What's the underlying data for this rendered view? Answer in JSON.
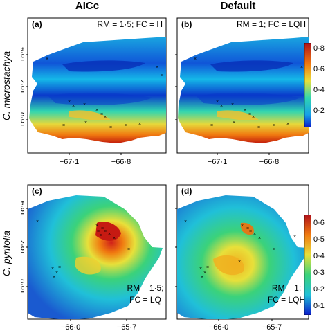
{
  "columns": [
    "AICc",
    "Default"
  ],
  "rows": [
    "C. microstachya",
    "C. pyrifolia"
  ],
  "panels": [
    {
      "tag": "(a)",
      "label": "RM = 1·5; FC = H",
      "x_ticks": [
        "−67·1",
        "−66·8"
      ],
      "y_ticks": [
        "18·4",
        "18·2",
        "18·0"
      ]
    },
    {
      "tag": "(b)",
      "label": "RM = 1; FC = LQH",
      "x_ticks": [
        "−67·1",
        "−66·8"
      ],
      "y_ticks": [
        "18·4",
        "18·2",
        "18·0"
      ]
    },
    {
      "tag": "(c)",
      "label_lines": [
        "RM = 1·5;",
        "FC = LQ"
      ],
      "x_ticks": [
        "−66·0",
        "−65·7"
      ],
      "y_ticks": [
        "18·4",
        "18·2",
        "18·0"
      ]
    },
    {
      "tag": "(d)",
      "label_lines": [
        "RM = 1;",
        "FC = LQH"
      ],
      "x_ticks": [
        "−66·0",
        "−65·7"
      ],
      "y_ticks": [
        "18·4",
        "18·2",
        "18·0"
      ]
    }
  ],
  "colorbars": [
    {
      "ticks": [
        "0·8",
        "0·6",
        "0·4",
        "0·2"
      ]
    },
    {
      "ticks": [
        "0·6",
        "0·5",
        "0·4",
        "0·3",
        "0·2",
        "0·1"
      ]
    }
  ]
}
